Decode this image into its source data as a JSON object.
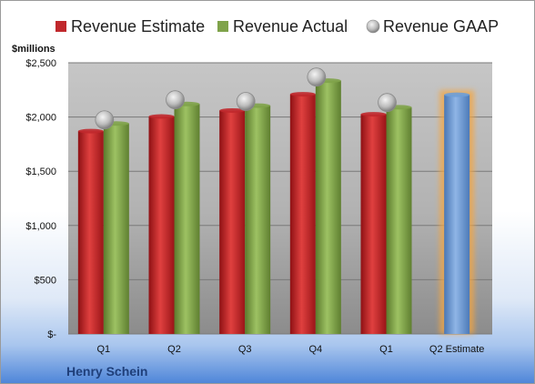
{
  "chart_data": {
    "type": "bar",
    "title": "",
    "unit_label": "$millions",
    "company": "Henry Schein",
    "categories": [
      "Q1",
      "Q2",
      "Q3",
      "Q4",
      "Q1",
      "Q2 Estimate"
    ],
    "yticks": [
      "$-",
      "$500",
      "$1,000",
      "$1,500",
      "$2,000",
      "$2,500"
    ],
    "ylim": [
      0,
      2500
    ],
    "grid": true,
    "legend_position": "top",
    "series": [
      {
        "name": "Revenue Estimate",
        "kind": "bar",
        "color": "#c0282c",
        "values": [
          1870,
          2005,
          2060,
          2210,
          2025,
          null
        ]
      },
      {
        "name": "Revenue Actual",
        "kind": "bar",
        "color": "#7fa34a",
        "values": [
          1940,
          2120,
          2105,
          2335,
          2090,
          null
        ]
      },
      {
        "name": "Revenue GAAP",
        "kind": "marker",
        "color": "#b8b8b8",
        "values": [
          1940,
          2125,
          2110,
          2335,
          2100,
          null
        ]
      },
      {
        "name": "",
        "kind": "bar",
        "color": "#6f9ed6",
        "highlight": true,
        "values": [
          null,
          null,
          null,
          null,
          null,
          2205
        ]
      }
    ]
  }
}
